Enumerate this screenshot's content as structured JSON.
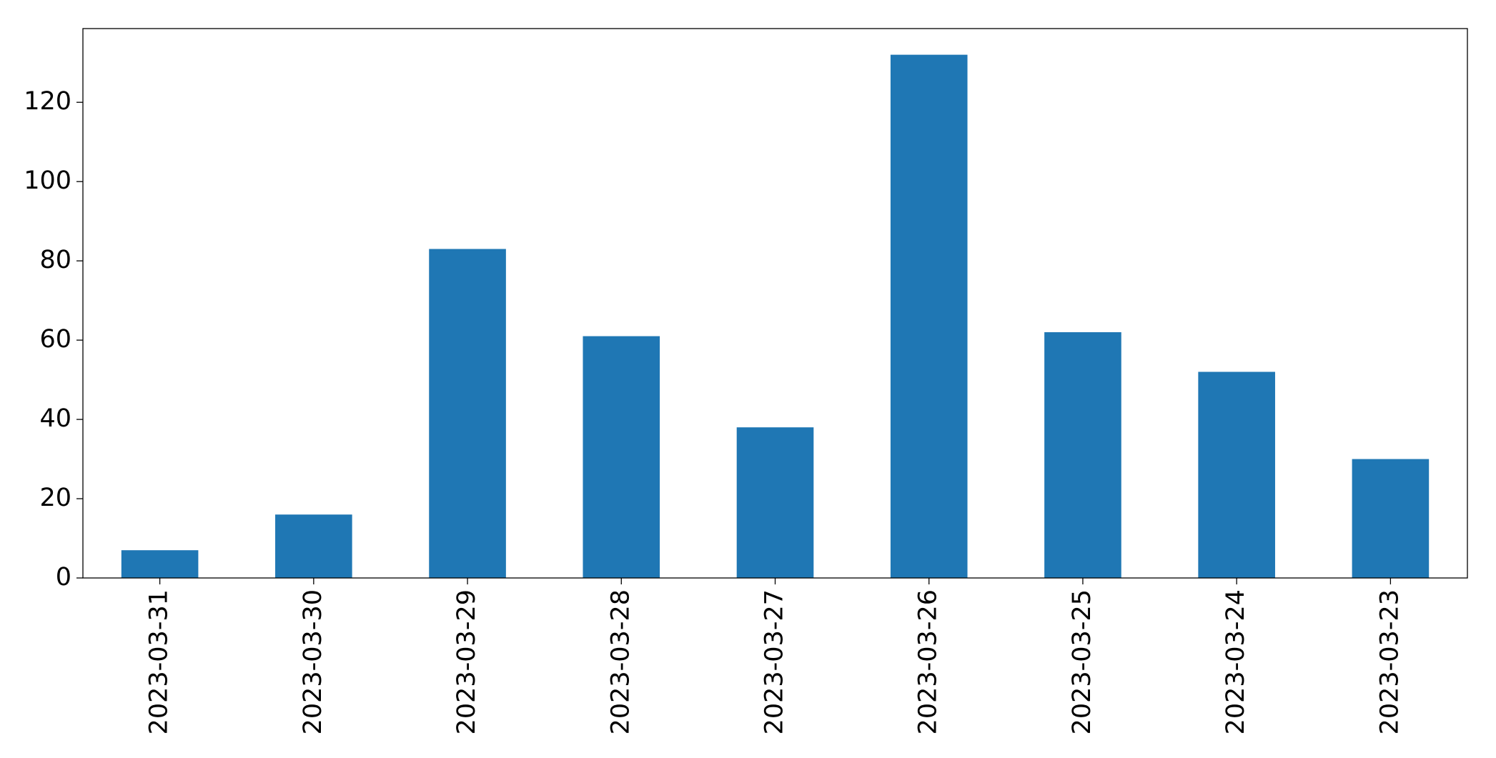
{
  "chart_data": {
    "type": "bar",
    "categories": [
      "2023-03-31",
      "2023-03-30",
      "2023-03-29",
      "2023-03-28",
      "2023-03-27",
      "2023-03-26",
      "2023-03-25",
      "2023-03-24",
      "2023-03-23"
    ],
    "values": [
      7,
      16,
      83,
      61,
      38,
      132,
      62,
      52,
      30
    ],
    "color": "#1f77b4",
    "ylim": [
      0,
      138.6
    ],
    "yticks": [
      0,
      20,
      40,
      60,
      80,
      100,
      120
    ],
    "grid": false
  }
}
